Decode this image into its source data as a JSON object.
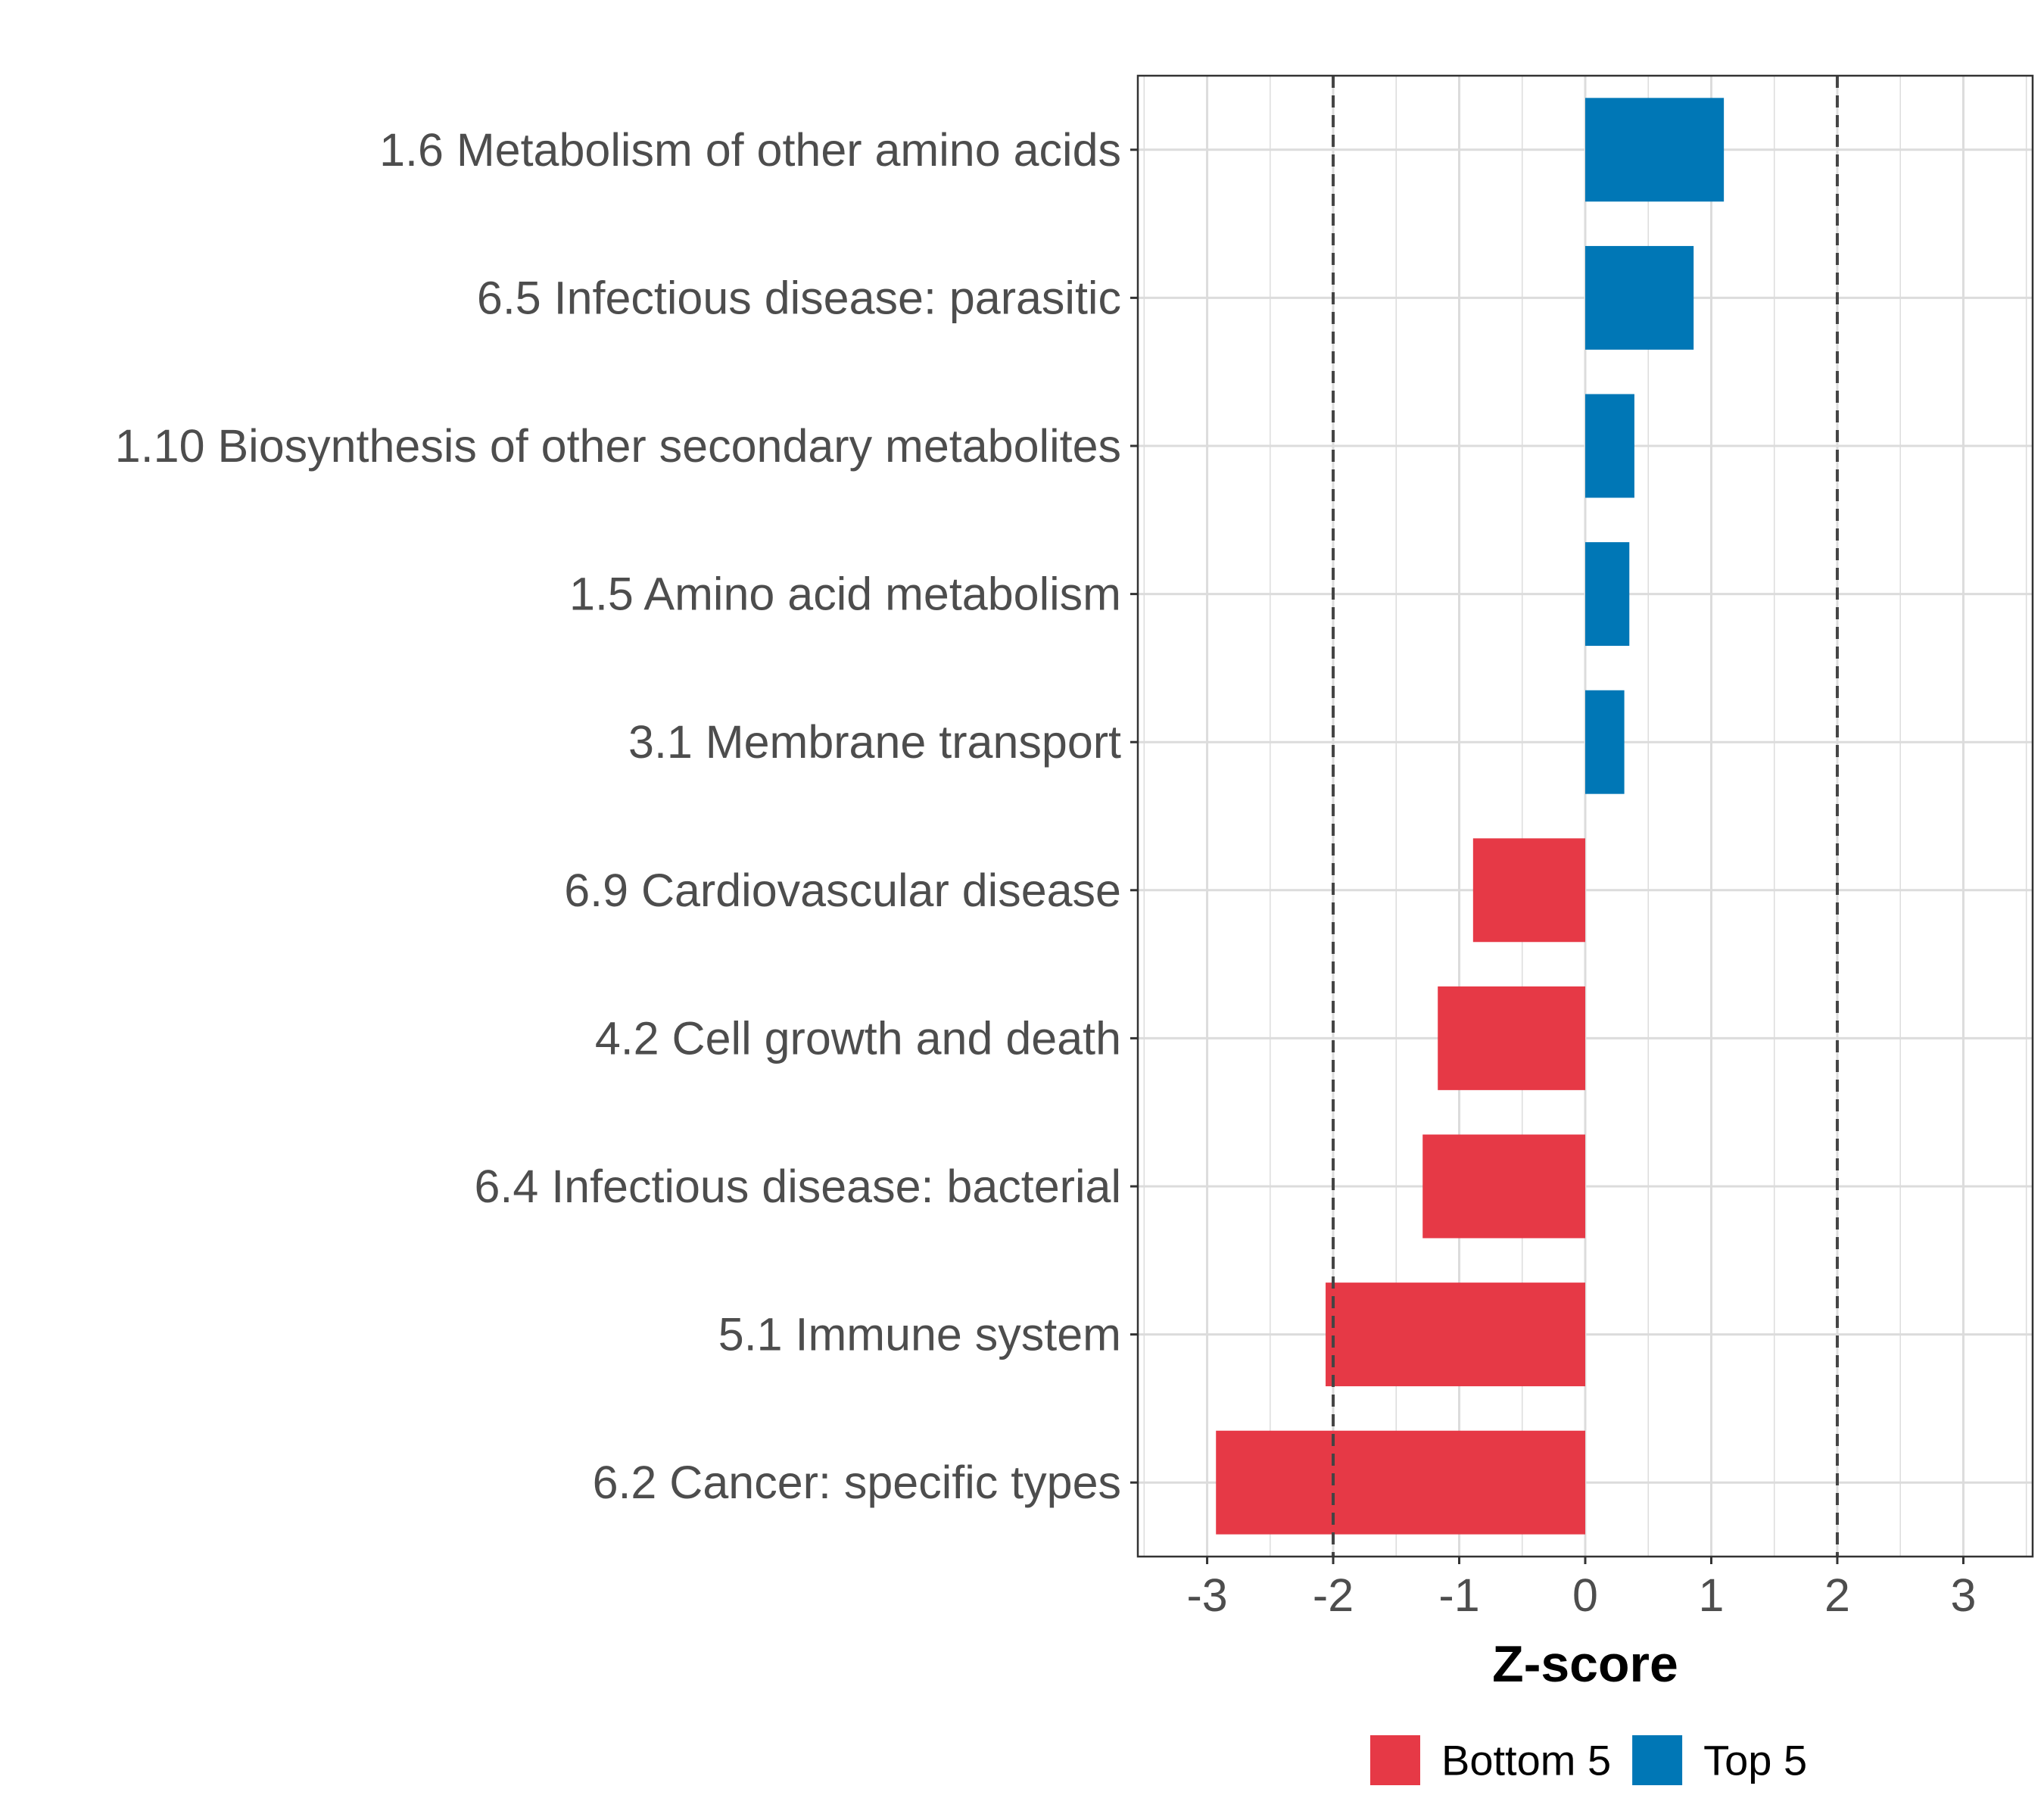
{
  "chart_data": {
    "type": "bar",
    "orientation": "horizontal",
    "xlabel": "Z-score",
    "ylabel": "",
    "xlim": [
      -3.55,
      3.55
    ],
    "x_ticks": [
      -3,
      -2,
      -1,
      0,
      1,
      2,
      3
    ],
    "x_tick_labels": [
      "-3",
      "-2",
      "-1",
      "0",
      "1",
      "2",
      "3"
    ],
    "reference_lines": [
      -2,
      2
    ],
    "grid": true,
    "legend_position": "bottom",
    "categories": [
      "1.6 Metabolism of other amino acids",
      "6.5 Infectious disease: parasitic",
      "1.10 Biosynthesis of other secondary metabolites",
      "1.5 Amino acid metabolism",
      "3.1 Membrane transport",
      "6.9 Cardiovascular disease",
      "4.2 Cell growth and death",
      "6.4 Infectious disease: bacterial",
      "5.1 Immune system",
      "6.2 Cancer: specific types"
    ],
    "values": [
      1.1,
      0.86,
      0.39,
      0.35,
      0.31,
      -0.89,
      -1.17,
      -1.29,
      -2.06,
      -2.93
    ],
    "groups": [
      "Top 5",
      "Top 5",
      "Top 5",
      "Top 5",
      "Top 5",
      "Bottom 5",
      "Bottom 5",
      "Bottom 5",
      "Bottom 5",
      "Bottom 5"
    ],
    "legend": [
      {
        "name": "Bottom 5",
        "color": "#e63946"
      },
      {
        "name": "Top 5",
        "color": "#0077b6"
      }
    ]
  }
}
